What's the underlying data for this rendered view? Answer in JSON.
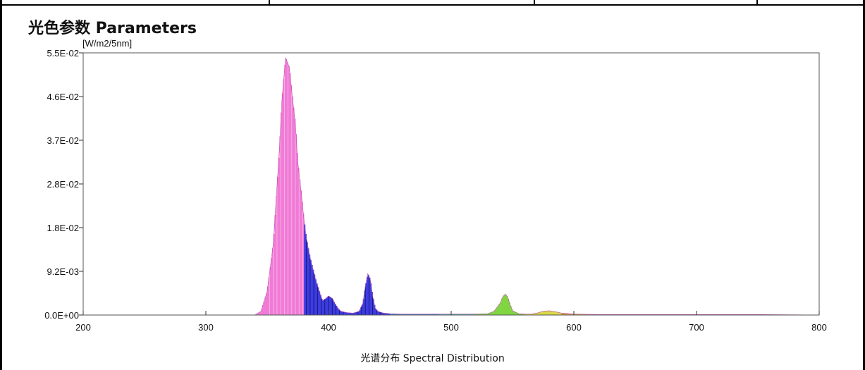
{
  "header": {
    "title": "光色参数 Parameters"
  },
  "chart_data": {
    "type": "area",
    "title": "光色参数 Parameters",
    "xlabel": "光谱分布 Spectral Distribution",
    "ylabel": "[W/m2/5nm]",
    "xlim": [
      200,
      800
    ],
    "ylim": [
      0,
      0.055
    ],
    "x_ticks": [
      "200",
      "300",
      "400",
      "500",
      "600",
      "700",
      "800"
    ],
    "y_ticks": [
      "0.0E+00",
      "9.2E-03",
      "1.8E-02",
      "2.8E-02",
      "3.7E-02",
      "4.6E-02",
      "5.5E-02"
    ],
    "grid": false,
    "series": [
      {
        "x": [
          200,
          250,
          300,
          330,
          340,
          345,
          350,
          355,
          360,
          362,
          365,
          368,
          370,
          373,
          375,
          378,
          380,
          382,
          385,
          390,
          395,
          398,
          400,
          403,
          405,
          408,
          410,
          415,
          420,
          425,
          428,
          430,
          432,
          434,
          436,
          438,
          440,
          445,
          450,
          460,
          470,
          480,
          490,
          500,
          510,
          520,
          530,
          535,
          540,
          542,
          544,
          546,
          548,
          550,
          555,
          560,
          565,
          570,
          575,
          580,
          585,
          590,
          600,
          620,
          650,
          700,
          750,
          800
        ],
        "values": [
          0,
          0,
          0,
          0,
          0,
          0.0008,
          0.005,
          0.015,
          0.035,
          0.045,
          0.054,
          0.052,
          0.047,
          0.04,
          0.032,
          0.025,
          0.02,
          0.016,
          0.012,
          0.007,
          0.003,
          0.0035,
          0.004,
          0.0035,
          0.0025,
          0.0013,
          0.0008,
          0.0005,
          0.0004,
          0.0008,
          0.0025,
          0.006,
          0.0087,
          0.0075,
          0.004,
          0.0015,
          0.0008,
          0.0004,
          0.0003,
          0.0002,
          0.0002,
          0.0002,
          0.0002,
          0.0002,
          0.0002,
          0.0002,
          0.0003,
          0.0008,
          0.0025,
          0.0038,
          0.0044,
          0.0038,
          0.0022,
          0.0009,
          0.0003,
          0.0002,
          0.0002,
          0.0004,
          0.0008,
          0.0009,
          0.0007,
          0.0004,
          0.0002,
          0.0001,
          0.0001,
          0.0001,
          0.0001,
          0
        ]
      }
    ],
    "band_colors": [
      {
        "from": 200,
        "to": 380,
        "color": "#f07bd6"
      },
      {
        "from": 380,
        "to": 450,
        "color": "#3c3ce0"
      },
      {
        "from": 450,
        "to": 490,
        "color": "#3a8ce0"
      },
      {
        "from": 490,
        "to": 520,
        "color": "#3ec7b0"
      },
      {
        "from": 520,
        "to": 560,
        "color": "#7fd640"
      },
      {
        "from": 560,
        "to": 590,
        "color": "#d9d94a"
      },
      {
        "from": 590,
        "to": 630,
        "color": "#e0a040"
      },
      {
        "from": 630,
        "to": 800,
        "color": "#d04040"
      }
    ]
  }
}
